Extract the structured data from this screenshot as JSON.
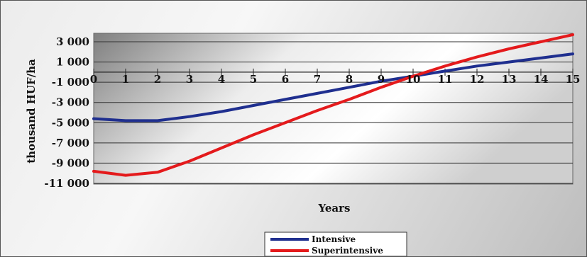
{
  "chart_data": {
    "type": "line",
    "title": "",
    "xlabel": "Years",
    "ylabel": "thousand HUF/ha",
    "x": [
      0,
      1,
      2,
      3,
      4,
      5,
      6,
      7,
      8,
      9,
      10,
      11,
      12,
      13,
      14,
      15
    ],
    "xlim": [
      0,
      15
    ],
    "ylim": [
      -11000,
      4000
    ],
    "y_ticks": [
      3000,
      1000,
      -1000,
      -3000,
      -5000,
      -7000,
      -9000,
      -11000
    ],
    "y_tick_labels": [
      "3 000",
      "1 000",
      "-1 000",
      "-3 000",
      "-5 000",
      "-7 000",
      "-9 000",
      "-11 000"
    ],
    "x_tick_labels": [
      "0",
      "1",
      "2",
      "3",
      "4",
      "5",
      "6",
      "7",
      "8",
      "9",
      "10",
      "11",
      "12",
      "13",
      "14",
      "15"
    ],
    "grid": true,
    "legend_position": "bottom-center",
    "series": [
      {
        "name": "Intensive",
        "color": "#1f2f8f",
        "values": [
          -4600,
          -4800,
          -4800,
          -4400,
          -3900,
          -3300,
          -2700,
          -2100,
          -1500,
          -900,
          -400,
          100,
          600,
          1000,
          1400,
          1800
        ]
      },
      {
        "name": "Superintensive",
        "color": "#e41a1c",
        "values": [
          -9800,
          -10200,
          -9900,
          -8800,
          -7500,
          -6200,
          -5000,
          -3800,
          -2700,
          -1500,
          -400,
          600,
          1500,
          2300,
          3000,
          3700
        ]
      }
    ]
  }
}
